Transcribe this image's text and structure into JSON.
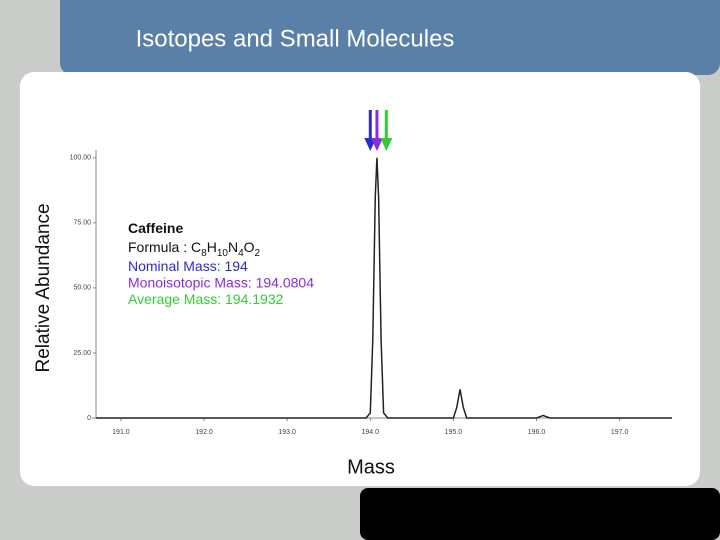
{
  "chart_data": {
    "type": "line",
    "title": "Isotopes and Small Molecules",
    "x_label": "Mass",
    "y_label": "Relative Abundance",
    "xlim": [
      190.7,
      197.63
    ],
    "ylim": [
      0,
      103
    ],
    "xticks": [
      {
        "value": 191,
        "label": "191.0"
      },
      {
        "value": 192,
        "label": "192.0"
      },
      {
        "value": 193,
        "label": "193.0"
      },
      {
        "value": 194,
        "label": "194.0"
      },
      {
        "value": 195,
        "label": "195.0"
      },
      {
        "value": 196,
        "label": "196.0"
      },
      {
        "value": 197,
        "label": "197.0"
      }
    ],
    "yticks": [
      0,
      {
        "value": 25,
        "label": "25.00"
      },
      {
        "value": 50,
        "label": "50.00"
      },
      {
        "value": 75,
        "label": "75.00"
      },
      {
        "value": 100,
        "label": "100.00"
      }
    ],
    "series": [
      {
        "color": "#222222",
        "x": [
          190.7,
          193.95,
          194.0,
          194.03,
          194.06,
          194.08,
          194.1,
          194.13,
          194.16,
          194.21,
          195.0,
          195.04,
          195.08,
          195.12,
          195.16,
          196.0,
          196.05,
          196.08,
          196.11,
          196.16,
          197.63
        ],
        "values": [
          0,
          0,
          2,
          30,
          85,
          100,
          85,
          30,
          2,
          0,
          0,
          4,
          11,
          4,
          0,
          0,
          0.6,
          1,
          0.6,
          0,
          0
        ]
      }
    ],
    "compound": "Caffeine",
    "formula": {
      "label": "Formula :",
      "atoms": [
        {
          "symbol": "C",
          "count": 8
        },
        {
          "symbol": "H",
          "count": 10
        },
        {
          "symbol": "N",
          "count": 4
        },
        {
          "symbol": "O",
          "count": 2
        }
      ]
    },
    "annotations": [
      {
        "label": "Nominal Mass:",
        "value": 194,
        "color": "#2b2bd0"
      },
      {
        "label": "Monoisotopic Mass:",
        "value": 194.0804,
        "color": "#8a2be2"
      },
      {
        "label": "Average Mass:",
        "value": 194.1932,
        "color": "#33cc33"
      }
    ]
  }
}
